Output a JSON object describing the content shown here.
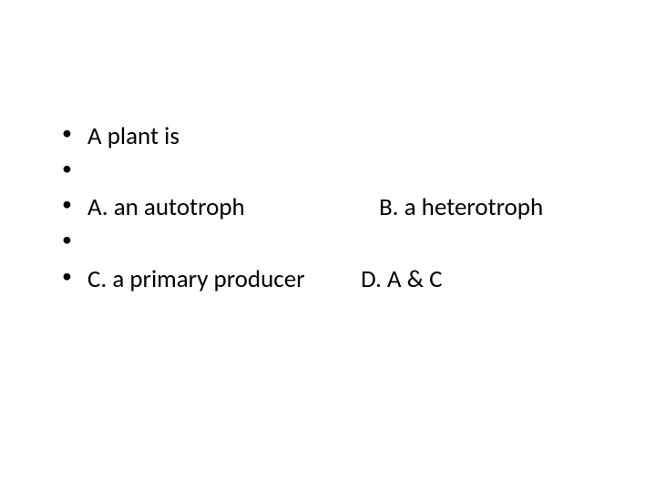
{
  "background_color": "#ffffff",
  "text_color": "#000000",
  "font_family": "Calibri",
  "font_size_pt": 27,
  "bullets": {
    "line1": "A plant is",
    "line2": "",
    "line3_left": "A.  an autotroph",
    "line3_right": "B.  a heterotroph",
    "line4": "",
    "line5_left": "C.  a primary producer",
    "line5_right": "D.  A & C"
  }
}
